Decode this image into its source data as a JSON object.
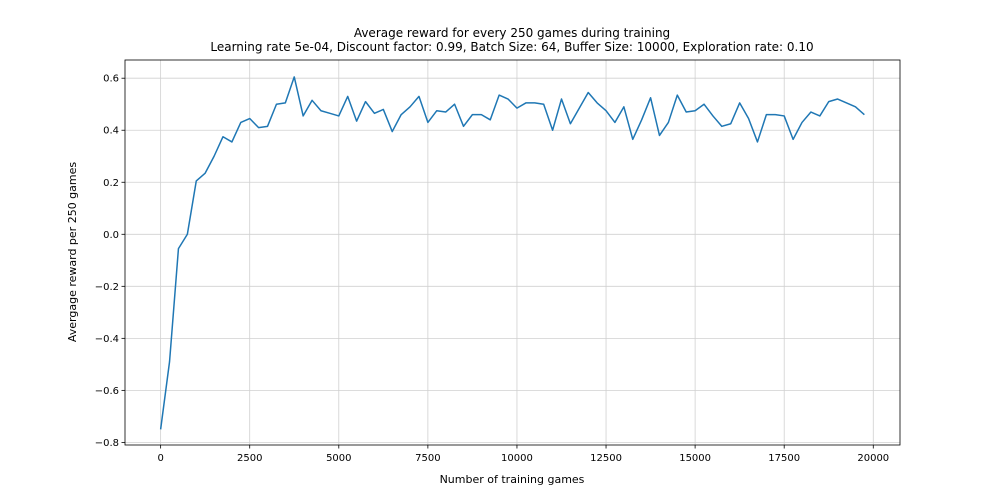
{
  "chart_data": {
    "type": "line",
    "title": "Average reward for every 250 games during training",
    "subtitle": "Learning rate 5e-04, Discount factor: 0.99, Batch Size: 64, Buffer Size: 10000, Exploration rate: 0.10",
    "xlabel": "Number of training games",
    "ylabel": "Avergage reward per 250 games",
    "xlim": [
      -1000,
      20750
    ],
    "ylim": [
      -0.81,
      0.67
    ],
    "xticks": [
      0,
      2500,
      5000,
      7500,
      10000,
      12500,
      15000,
      17500,
      20000
    ],
    "xtick_labels": [
      "0",
      "2500",
      "5000",
      "7500",
      "10000",
      "12500",
      "15000",
      "17500",
      "20000"
    ],
    "yticks": [
      -0.8,
      -0.6,
      -0.4,
      -0.2,
      0.0,
      0.2,
      0.4,
      0.6
    ],
    "ytick_labels": [
      "−0.8",
      "−0.6",
      "−0.4",
      "−0.2",
      "0.0",
      "0.2",
      "0.4",
      "0.6"
    ],
    "grid": true,
    "color": "#1f77b4",
    "series": [
      {
        "x": [
          0,
          250,
          500,
          750,
          1000,
          1250,
          1500,
          1750,
          2000,
          2250,
          2500,
          2750,
          3000,
          3250,
          3500,
          3750,
          4000,
          4250,
          4500,
          4750,
          5000,
          5250,
          5500,
          5750,
          6000,
          6250,
          6500,
          6750,
          7000,
          7250,
          7500,
          7750,
          8000,
          8250,
          8500,
          8750,
          9000,
          9250,
          9500,
          9750,
          10000,
          10250,
          10500,
          10750,
          11000,
          11250,
          11500,
          11750,
          12000,
          12250,
          12500,
          12750,
          13000,
          13250,
          13500,
          13750,
          14000,
          14250,
          14500,
          14750,
          15000,
          15250,
          15500,
          15750,
          16000,
          16250,
          16500,
          16750,
          17000,
          17250,
          17500,
          17750,
          18000,
          18250,
          18500,
          18750,
          19000,
          19250,
          19500,
          19750
        ],
        "y": [
          -0.75,
          -0.49,
          -0.055,
          0.0,
          0.205,
          0.235,
          0.3,
          0.375,
          0.355,
          0.43,
          0.445,
          0.41,
          0.415,
          0.5,
          0.505,
          0.605,
          0.455,
          0.515,
          0.475,
          0.465,
          0.455,
          0.53,
          0.435,
          0.51,
          0.465,
          0.48,
          0.395,
          0.46,
          0.49,
          0.53,
          0.43,
          0.475,
          0.47,
          0.5,
          0.415,
          0.46,
          0.46,
          0.44,
          0.535,
          0.52,
          0.485,
          0.505,
          0.505,
          0.5,
          0.4,
          0.52,
          0.425,
          0.485,
          0.545,
          0.505,
          0.475,
          0.43,
          0.49,
          0.365,
          0.44,
          0.525,
          0.38,
          0.43,
          0.535,
          0.47,
          0.475,
          0.5,
          0.455,
          0.415,
          0.425,
          0.505,
          0.445,
          0.355,
          0.46,
          0.46,
          0.455,
          0.365,
          0.43,
          0.47,
          0.455,
          0.51,
          0.52,
          0.505,
          0.49,
          0.46
        ]
      }
    ]
  }
}
